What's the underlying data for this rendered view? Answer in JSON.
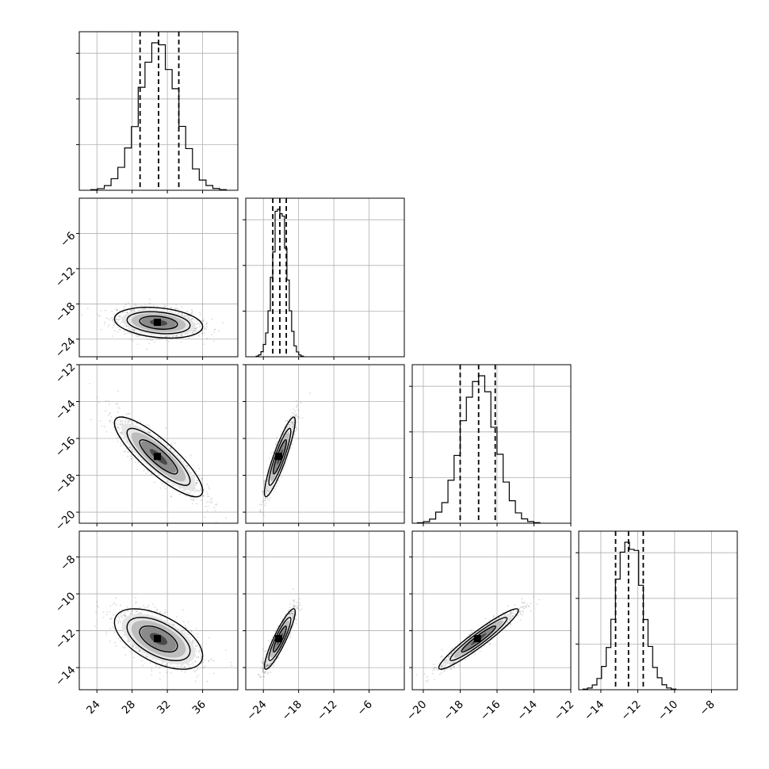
{
  "chart_data": {
    "type": "corner",
    "parameters": [
      {
        "range": [
          22,
          40
        ],
        "ticks": [
          24,
          28,
          32,
          36
        ],
        "quantiles": [
          28.9,
          31.0,
          33.3
        ],
        "mean": 31.0,
        "sd": 2.2
      },
      {
        "range": [
          -27,
          0
        ],
        "ticks": [
          -24,
          -18,
          -12,
          -6
        ],
        "quantiles": [
          -22.4,
          -21.2,
          -20.1
        ],
        "mean": -21.2,
        "sd": 1.15
      },
      {
        "range": [
          -20.6,
          -12
        ],
        "ticks": [
          -20,
          -18,
          -16,
          -14,
          -12
        ],
        "quantiles": [
          -18.0,
          -17.0,
          -16.1
        ],
        "mean": -17.0,
        "sd": 0.95
      },
      {
        "range": [
          -15.2,
          -6.6
        ],
        "ticks": [
          -14,
          -12,
          -10,
          -8
        ],
        "quantiles": [
          -13.2,
          -12.5,
          -11.7
        ],
        "mean": -12.45,
        "sd": 0.72
      }
    ],
    "tick_labels": [
      [
        "24",
        "28",
        "32",
        "36"
      ],
      [
        "−24",
        "−18",
        "−12",
        "−6"
      ],
      [
        "−20",
        "−18",
        "−16",
        "−14",
        "−12"
      ],
      [
        "−14",
        "−12",
        "−10",
        "−8"
      ]
    ],
    "row_tick_labels": [
      [],
      [
        "−24",
        "−18",
        "−12",
        "−6"
      ],
      [
        "−20",
        "−18",
        "−16",
        "−14",
        "−12"
      ],
      [
        "−14",
        "−12",
        "−10",
        "−8"
      ]
    ],
    "y_ticks_rows": [
      null,
      [
        -24,
        -18,
        -12,
        -6
      ],
      [
        -20,
        -18,
        -16,
        -14,
        -12
      ],
      [
        -14,
        -12,
        -10,
        -8
      ]
    ],
    "correlations": [
      [
        1,
        -0.25,
        -0.85,
        -0.55
      ],
      [
        -0.25,
        1,
        0.9,
        0.9
      ],
      [
        -0.85,
        0.9,
        1,
        0.95
      ],
      [
        -0.55,
        0.9,
        0.95,
        1
      ]
    ],
    "hist_bins": 20,
    "quantile_levels": [
      0.16,
      0.5,
      0.84
    ],
    "contour_sigmas": [
      0.75,
      1.25,
      1.75
    ],
    "grid": true,
    "colors": {
      "line": "#000000",
      "grid": "#b0b0b0",
      "points": "#555555"
    }
  }
}
